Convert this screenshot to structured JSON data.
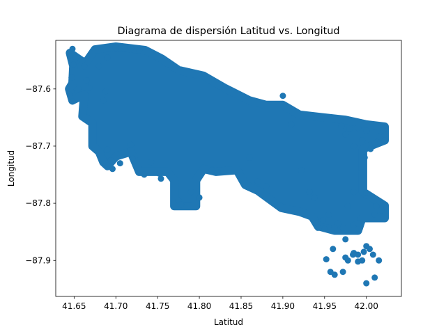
{
  "chart_data": {
    "type": "scatter",
    "title": "Diagrama de dispersión Latitud vs. Longitud",
    "xlabel": "Latitud",
    "ylabel": "Longitud",
    "xlim": [
      41.628,
      42.042
    ],
    "ylim": [
      -87.963,
      -87.515
    ],
    "xticks": [
      41.65,
      41.7,
      41.75,
      41.8,
      41.85,
      41.9,
      41.95,
      42.0
    ],
    "xtick_labels": [
      "41.65",
      "41.70",
      "41.75",
      "41.80",
      "41.85",
      "41.90",
      "41.95",
      "42.00"
    ],
    "yticks": [
      -87.9,
      -87.8,
      -87.7,
      -87.6
    ],
    "ytick_labels": [
      "−87.9",
      "−87.8",
      "−87.7",
      "−87.6"
    ],
    "marker_color": "#1f77b4",
    "grid": false,
    "legend": "none",
    "series": [
      {
        "points": [
          [
            41.645,
            -87.542
          ],
          [
            41.648,
            -87.53
          ],
          [
            41.652,
            -87.545
          ],
          [
            41.66,
            -87.55
          ],
          [
            41.662,
            -87.56
          ],
          [
            41.649,
            -87.557
          ],
          [
            41.647,
            -87.58
          ],
          [
            41.645,
            -87.61
          ],
          [
            41.648,
            -87.622
          ],
          [
            41.655,
            -87.6
          ],
          [
            41.665,
            -87.585
          ],
          [
            41.668,
            -87.598
          ],
          [
            41.68,
            -87.56
          ],
          [
            41.69,
            -87.545
          ],
          [
            41.7,
            -87.528
          ],
          [
            41.71,
            -87.53
          ],
          [
            41.718,
            -87.528
          ],
          [
            41.728,
            -87.532
          ],
          [
            41.688,
            -87.604
          ],
          [
            41.685,
            -87.62
          ],
          [
            41.69,
            -87.706
          ],
          [
            41.694,
            -87.725
          ],
          [
            41.696,
            -87.74
          ],
          [
            41.705,
            -87.73
          ],
          [
            41.712,
            -87.71
          ],
          [
            41.72,
            -87.722
          ],
          [
            41.718,
            -87.698
          ],
          [
            41.734,
            -87.75
          ],
          [
            41.742,
            -87.728
          ],
          [
            41.754,
            -87.757
          ],
          [
            41.752,
            -87.748
          ],
          [
            41.775,
            -87.795
          ],
          [
            41.778,
            -87.802
          ],
          [
            41.79,
            -87.78
          ],
          [
            41.8,
            -87.79
          ],
          [
            41.815,
            -87.742
          ],
          [
            41.822,
            -87.746
          ],
          [
            41.86,
            -87.72
          ],
          [
            41.87,
            -87.762
          ],
          [
            41.88,
            -87.77
          ],
          [
            41.9,
            -87.612
          ],
          [
            41.91,
            -87.662
          ],
          [
            41.922,
            -87.742
          ],
          [
            41.932,
            -87.78
          ],
          [
            41.938,
            -87.79
          ],
          [
            41.94,
            -87.835
          ],
          [
            41.948,
            -87.83
          ],
          [
            41.955,
            -87.82
          ],
          [
            41.962,
            -87.842
          ],
          [
            41.966,
            -87.835
          ],
          [
            41.97,
            -87.665
          ],
          [
            41.975,
            -87.68
          ],
          [
            41.98,
            -87.67
          ],
          [
            41.985,
            -87.7
          ],
          [
            41.99,
            -87.668
          ],
          [
            41.995,
            -87.69
          ],
          [
            42.0,
            -87.673
          ],
          [
            42.005,
            -87.705
          ],
          [
            42.01,
            -87.695
          ],
          [
            42.015,
            -87.683
          ],
          [
            42.02,
            -87.672
          ],
          [
            42.022,
            -87.69
          ],
          [
            41.998,
            -87.72
          ],
          [
            41.994,
            -87.746
          ],
          [
            42.0,
            -87.782
          ],
          [
            42.012,
            -87.805
          ],
          [
            42.018,
            -87.812
          ],
          [
            42.01,
            -87.82
          ],
          [
            41.978,
            -87.805
          ],
          [
            41.985,
            -87.78
          ],
          [
            41.975,
            -87.863
          ],
          [
            41.96,
            -87.88
          ],
          [
            41.952,
            -87.898
          ],
          [
            41.957,
            -87.92
          ],
          [
            41.962,
            -87.925
          ],
          [
            41.972,
            -87.92
          ],
          [
            41.978,
            -87.9
          ],
          [
            41.975,
            -87.895
          ],
          [
            41.984,
            -87.89
          ],
          [
            41.985,
            -87.887
          ],
          [
            41.99,
            -87.89
          ],
          [
            41.997,
            -87.885
          ],
          [
            42.0,
            -87.875
          ],
          [
            42.004,
            -87.88
          ],
          [
            42.008,
            -87.89
          ],
          [
            41.995,
            -87.9
          ],
          [
            41.99,
            -87.902
          ],
          [
            42.0,
            -87.94
          ],
          [
            42.01,
            -87.93
          ],
          [
            42.015,
            -87.9
          ],
          [
            41.942,
            -87.843
          ],
          [
            41.95,
            -87.845
          ],
          [
            41.972,
            -87.843
          ],
          [
            41.985,
            -87.838
          ],
          [
            41.99,
            -87.835
          ]
        ]
      }
    ]
  }
}
